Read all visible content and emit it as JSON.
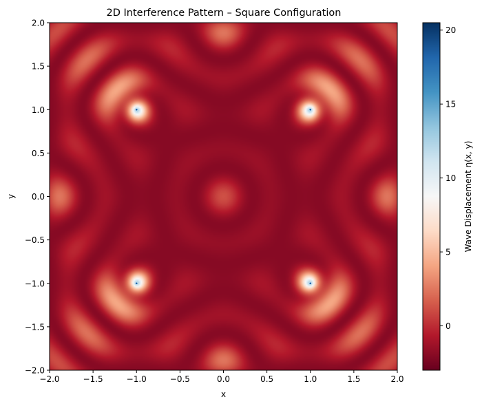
{
  "chart_data": {
    "type": "heatmap",
    "title": "2D Interference Pattern – Square Configuration",
    "xlabel": "x",
    "ylabel": "y",
    "xlim": [
      -2.0,
      2.0
    ],
    "ylim": [
      -2.0,
      2.0
    ],
    "xticks": [
      -2.0,
      -1.5,
      -1.0,
      -0.5,
      0.0,
      0.5,
      1.0,
      1.5,
      2.0
    ],
    "yticks": [
      -2.0,
      -1.5,
      -1.0,
      -0.5,
      0.0,
      0.5,
      1.0,
      1.5,
      2.0
    ],
    "xtick_labels": [
      "−2.0",
      "−1.5",
      "−1.0",
      "−0.5",
      "0.0",
      "0.5",
      "1.0",
      "1.5",
      "2.0"
    ],
    "ytick_labels": [
      "−2.0",
      "−1.5",
      "−1.0",
      "−0.5",
      "0.0",
      "0.5",
      "1.0",
      "1.5",
      "2.0"
    ],
    "sources": [
      {
        "x": -1.0,
        "y": 1.0
      },
      {
        "x": 1.0,
        "y": 1.0
      },
      {
        "x": -1.0,
        "y": -1.0
      },
      {
        "x": 1.0,
        "y": -1.0
      }
    ],
    "colormap": "RdBu",
    "colorbar": {
      "label": "Wave Displacement η(x, y)",
      "range": [
        -3.0,
        20.5
      ],
      "ticks": [
        0,
        5,
        10,
        15,
        20
      ],
      "tick_labels": [
        "0",
        "5",
        "10",
        "15",
        "20"
      ]
    },
    "grid": false,
    "legend": "none"
  }
}
